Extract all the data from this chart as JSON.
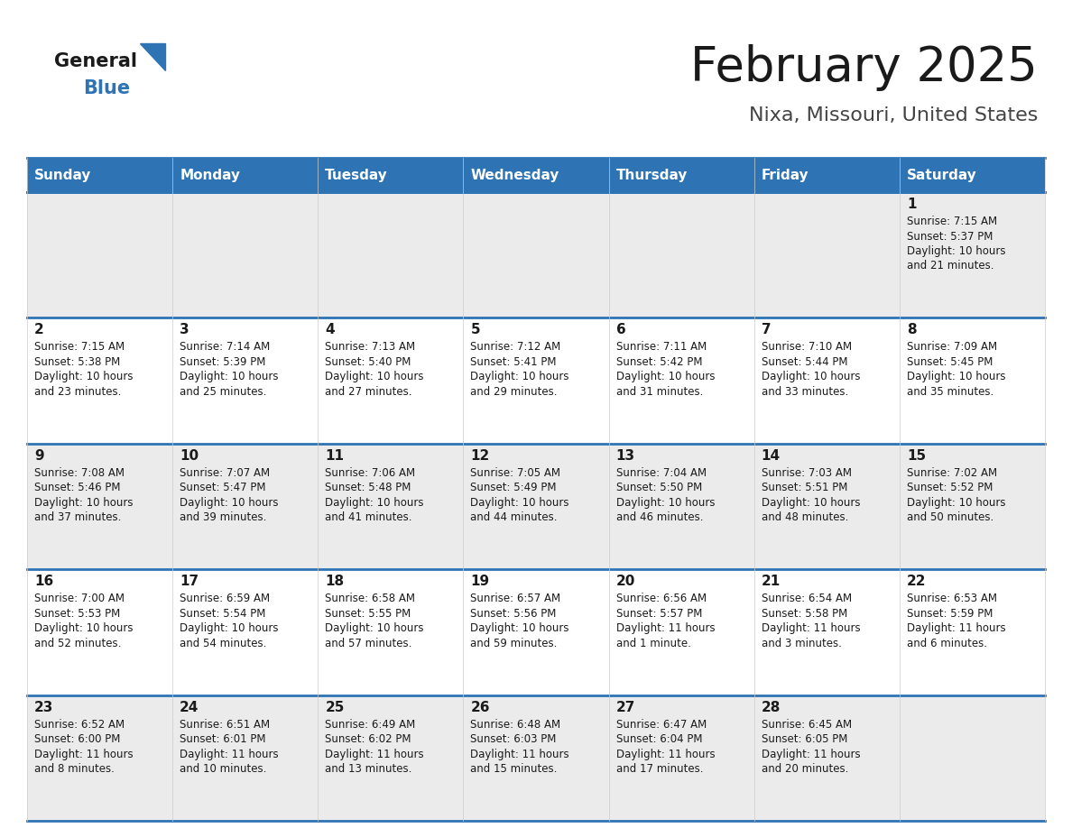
{
  "title": "February 2025",
  "subtitle": "Nixa, Missouri, United States",
  "header_color": "#2e74b5",
  "header_text_color": "#ffffff",
  "cell_bg_row0": "#ebebeb",
  "cell_bg_odd": "#ebebeb",
  "cell_bg_even": "#ffffff",
  "border_color": "#2e74b5",
  "text_color": "#1a1a1a",
  "days_of_week": [
    "Sunday",
    "Monday",
    "Tuesday",
    "Wednesday",
    "Thursday",
    "Friday",
    "Saturday"
  ],
  "calendar": [
    [
      {
        "day": "",
        "lines": []
      },
      {
        "day": "",
        "lines": []
      },
      {
        "day": "",
        "lines": []
      },
      {
        "day": "",
        "lines": []
      },
      {
        "day": "",
        "lines": []
      },
      {
        "day": "",
        "lines": []
      },
      {
        "day": "1",
        "lines": [
          "Sunrise: 7:15 AM",
          "Sunset: 5:37 PM",
          "Daylight: 10 hours",
          "and 21 minutes."
        ]
      }
    ],
    [
      {
        "day": "2",
        "lines": [
          "Sunrise: 7:15 AM",
          "Sunset: 5:38 PM",
          "Daylight: 10 hours",
          "and 23 minutes."
        ]
      },
      {
        "day": "3",
        "lines": [
          "Sunrise: 7:14 AM",
          "Sunset: 5:39 PM",
          "Daylight: 10 hours",
          "and 25 minutes."
        ]
      },
      {
        "day": "4",
        "lines": [
          "Sunrise: 7:13 AM",
          "Sunset: 5:40 PM",
          "Daylight: 10 hours",
          "and 27 minutes."
        ]
      },
      {
        "day": "5",
        "lines": [
          "Sunrise: 7:12 AM",
          "Sunset: 5:41 PM",
          "Daylight: 10 hours",
          "and 29 minutes."
        ]
      },
      {
        "day": "6",
        "lines": [
          "Sunrise: 7:11 AM",
          "Sunset: 5:42 PM",
          "Daylight: 10 hours",
          "and 31 minutes."
        ]
      },
      {
        "day": "7",
        "lines": [
          "Sunrise: 7:10 AM",
          "Sunset: 5:44 PM",
          "Daylight: 10 hours",
          "and 33 minutes."
        ]
      },
      {
        "day": "8",
        "lines": [
          "Sunrise: 7:09 AM",
          "Sunset: 5:45 PM",
          "Daylight: 10 hours",
          "and 35 minutes."
        ]
      }
    ],
    [
      {
        "day": "9",
        "lines": [
          "Sunrise: 7:08 AM",
          "Sunset: 5:46 PM",
          "Daylight: 10 hours",
          "and 37 minutes."
        ]
      },
      {
        "day": "10",
        "lines": [
          "Sunrise: 7:07 AM",
          "Sunset: 5:47 PM",
          "Daylight: 10 hours",
          "and 39 minutes."
        ]
      },
      {
        "day": "11",
        "lines": [
          "Sunrise: 7:06 AM",
          "Sunset: 5:48 PM",
          "Daylight: 10 hours",
          "and 41 minutes."
        ]
      },
      {
        "day": "12",
        "lines": [
          "Sunrise: 7:05 AM",
          "Sunset: 5:49 PM",
          "Daylight: 10 hours",
          "and 44 minutes."
        ]
      },
      {
        "day": "13",
        "lines": [
          "Sunrise: 7:04 AM",
          "Sunset: 5:50 PM",
          "Daylight: 10 hours",
          "and 46 minutes."
        ]
      },
      {
        "day": "14",
        "lines": [
          "Sunrise: 7:03 AM",
          "Sunset: 5:51 PM",
          "Daylight: 10 hours",
          "and 48 minutes."
        ]
      },
      {
        "day": "15",
        "lines": [
          "Sunrise: 7:02 AM",
          "Sunset: 5:52 PM",
          "Daylight: 10 hours",
          "and 50 minutes."
        ]
      }
    ],
    [
      {
        "day": "16",
        "lines": [
          "Sunrise: 7:00 AM",
          "Sunset: 5:53 PM",
          "Daylight: 10 hours",
          "and 52 minutes."
        ]
      },
      {
        "day": "17",
        "lines": [
          "Sunrise: 6:59 AM",
          "Sunset: 5:54 PM",
          "Daylight: 10 hours",
          "and 54 minutes."
        ]
      },
      {
        "day": "18",
        "lines": [
          "Sunrise: 6:58 AM",
          "Sunset: 5:55 PM",
          "Daylight: 10 hours",
          "and 57 minutes."
        ]
      },
      {
        "day": "19",
        "lines": [
          "Sunrise: 6:57 AM",
          "Sunset: 5:56 PM",
          "Daylight: 10 hours",
          "and 59 minutes."
        ]
      },
      {
        "day": "20",
        "lines": [
          "Sunrise: 6:56 AM",
          "Sunset: 5:57 PM",
          "Daylight: 11 hours",
          "and 1 minute."
        ]
      },
      {
        "day": "21",
        "lines": [
          "Sunrise: 6:54 AM",
          "Sunset: 5:58 PM",
          "Daylight: 11 hours",
          "and 3 minutes."
        ]
      },
      {
        "day": "22",
        "lines": [
          "Sunrise: 6:53 AM",
          "Sunset: 5:59 PM",
          "Daylight: 11 hours",
          "and 6 minutes."
        ]
      }
    ],
    [
      {
        "day": "23",
        "lines": [
          "Sunrise: 6:52 AM",
          "Sunset: 6:00 PM",
          "Daylight: 11 hours",
          "and 8 minutes."
        ]
      },
      {
        "day": "24",
        "lines": [
          "Sunrise: 6:51 AM",
          "Sunset: 6:01 PM",
          "Daylight: 11 hours",
          "and 10 minutes."
        ]
      },
      {
        "day": "25",
        "lines": [
          "Sunrise: 6:49 AM",
          "Sunset: 6:02 PM",
          "Daylight: 11 hours",
          "and 13 minutes."
        ]
      },
      {
        "day": "26",
        "lines": [
          "Sunrise: 6:48 AM",
          "Sunset: 6:03 PM",
          "Daylight: 11 hours",
          "and 15 minutes."
        ]
      },
      {
        "day": "27",
        "lines": [
          "Sunrise: 6:47 AM",
          "Sunset: 6:04 PM",
          "Daylight: 11 hours",
          "and 17 minutes."
        ]
      },
      {
        "day": "28",
        "lines": [
          "Sunrise: 6:45 AM",
          "Sunset: 6:05 PM",
          "Daylight: 11 hours",
          "and 20 minutes."
        ]
      },
      {
        "day": "",
        "lines": []
      }
    ]
  ]
}
